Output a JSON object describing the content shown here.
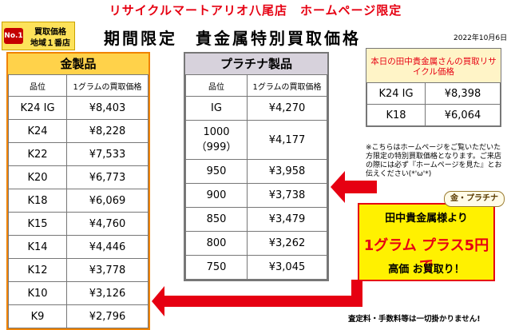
{
  "header": {
    "store_title": "リサイクルマートアリオ八尾店　ホームページ限定",
    "main_title": "期間限定　貴金属特別買取価格",
    "date": "2022年10月6日"
  },
  "badge": {
    "rank": "No.1",
    "line1": "買取価格",
    "line2": "地域１番店"
  },
  "gold": {
    "title": "金製品",
    "col_grade": "品位",
    "col_price": "1グラムの買取価格",
    "rows": [
      {
        "grade": "K24 IG",
        "price": "¥8,403"
      },
      {
        "grade": "K24",
        "price": "¥8,228"
      },
      {
        "grade": "K22",
        "price": "¥7,533"
      },
      {
        "grade": "K20",
        "price": "¥6,773"
      },
      {
        "grade": "K18",
        "price": "¥6,069"
      },
      {
        "grade": "K15",
        "price": "¥4,760"
      },
      {
        "grade": "K14",
        "price": "¥4,446"
      },
      {
        "grade": "K12",
        "price": "¥3,778"
      },
      {
        "grade": "K10",
        "price": "¥3,126"
      },
      {
        "grade": "K9",
        "price": "¥2,796"
      }
    ]
  },
  "platinum": {
    "title": "プラチナ製品",
    "col_grade": "品位",
    "col_price": "1グラムの買取価格",
    "rows": [
      {
        "grade": "IG",
        "price": "¥4,270"
      },
      {
        "grade": "1000（999）",
        "price": "¥4,177"
      },
      {
        "grade": "950",
        "price": "¥3,958"
      },
      {
        "grade": "900",
        "price": "¥3,738"
      },
      {
        "grade": "850",
        "price": "¥3,479"
      },
      {
        "grade": "800",
        "price": "¥3,262"
      },
      {
        "grade": "750",
        "price": "¥3,045"
      }
    ]
  },
  "tanaka": {
    "title": "本日の田中貴金属さんの買取リサイクル価格",
    "rows": [
      {
        "grade": "K24 IG",
        "price": "¥8,398"
      },
      {
        "grade": "K18",
        "price": "¥6,064"
      }
    ]
  },
  "note": "※こちらはホームページをご覧いただいた方限定の特別買取価格となります。ご来店の際には必ず『ホームページを見た』とお伝えください(*'ω'*)",
  "promo": {
    "tag": "金・プラチナ",
    "line1": "田中貴金属様より",
    "line2": "1グラム プラス5円で",
    "line3": "高価 お買取り！"
  },
  "footer": "査定料・手数料等は一切掛かりません!",
  "colors": {
    "accent_red": "#e60012",
    "gold_header": "#ffd24a",
    "platinum_header": "#d7d2dc",
    "promo_bg": "#fff100"
  }
}
